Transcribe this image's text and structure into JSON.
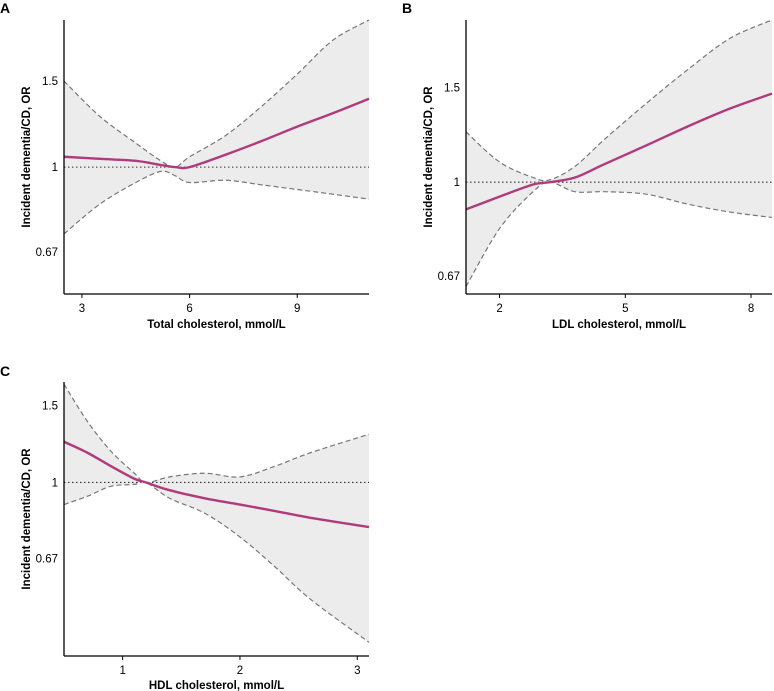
{
  "figure": {
    "colors": {
      "curve": "#b03a7c",
      "band": "#ececec",
      "ci": "#777777",
      "reference": "#333333"
    }
  },
  "chart_data": [
    {
      "type": "line",
      "panel": "A",
      "title": "",
      "xlabel": "Total cholesterol, mmol/L",
      "ylabel": "Incident dementia/CD, OR",
      "xlim": [
        2.5,
        11
      ],
      "ylim_log": [
        0.55,
        2.0
      ],
      "xticks": [
        3,
        6,
        9
      ],
      "yticks": [
        0.67,
        1,
        1.5
      ],
      "ytick_labels": [
        "0.67",
        "1",
        "1.5"
      ],
      "reference_y": 1,
      "x": [
        2.5,
        3.5,
        4.5,
        5.2,
        5.6,
        6.0,
        7.0,
        8.0,
        9.0,
        10.0,
        11.0
      ],
      "or": [
        1.05,
        1.04,
        1.03,
        1.01,
        1.0,
        1.0,
        1.06,
        1.13,
        1.21,
        1.29,
        1.38
      ],
      "lower": [
        0.73,
        0.84,
        0.93,
        0.98,
        0.96,
        0.93,
        0.94,
        0.92,
        0.9,
        0.88,
        0.86
      ],
      "upper": [
        1.5,
        1.27,
        1.12,
        1.03,
        1.0,
        1.05,
        1.16,
        1.33,
        1.55,
        1.82,
        2.0
      ]
    },
    {
      "type": "line",
      "panel": "B",
      "title": "",
      "xlabel": "LDL cholesterol, mmol/L",
      "ylabel": "Incident dementia/CD, OR",
      "xlim": [
        1.2,
        8.5
      ],
      "ylim_log": [
        0.62,
        2.0
      ],
      "xticks": [
        2,
        5,
        8
      ],
      "yticks": [
        0.67,
        1,
        1.5
      ],
      "ytick_labels": [
        "0.67",
        "1",
        "1.5"
      ],
      "reference_y": 1,
      "x": [
        1.2,
        2.0,
        2.8,
        3.2,
        3.8,
        4.5,
        5.5,
        6.5,
        7.5,
        8.5
      ],
      "or": [
        0.89,
        0.94,
        0.99,
        1.0,
        1.02,
        1.08,
        1.17,
        1.27,
        1.37,
        1.46
      ],
      "lower": [
        0.64,
        0.82,
        0.96,
        1.0,
        0.96,
        0.96,
        0.95,
        0.91,
        0.88,
        0.86
      ],
      "upper": [
        1.24,
        1.09,
        1.02,
        1.01,
        1.07,
        1.2,
        1.4,
        1.62,
        1.85,
        2.0
      ]
    },
    {
      "type": "line",
      "panel": "C",
      "title": "",
      "xlabel": "HDL cholesterol, mmol/L",
      "ylabel": "Incident dementia/CD, OR",
      "xlim": [
        0.5,
        3.1
      ],
      "ylim_log": [
        0.4,
        1.7
      ],
      "xticks": [
        1,
        2,
        3
      ],
      "yticks": [
        0.67,
        1,
        1.5
      ],
      "ytick_labels": [
        "0.67",
        "1",
        "1.5"
      ],
      "reference_y": 1,
      "x": [
        0.5,
        0.7,
        0.9,
        1.1,
        1.2,
        1.4,
        1.7,
        2.0,
        2.3,
        2.6,
        3.1
      ],
      "or": [
        1.24,
        1.17,
        1.09,
        1.02,
        1.0,
        0.96,
        0.92,
        0.89,
        0.86,
        0.83,
        0.79
      ],
      "lower": [
        0.89,
        0.93,
        0.98,
        0.99,
        1.0,
        0.92,
        0.85,
        0.75,
        0.64,
        0.54,
        0.43
      ],
      "upper": [
        1.68,
        1.38,
        1.18,
        1.05,
        1.0,
        1.03,
        1.05,
        1.03,
        1.09,
        1.17,
        1.29
      ]
    }
  ]
}
